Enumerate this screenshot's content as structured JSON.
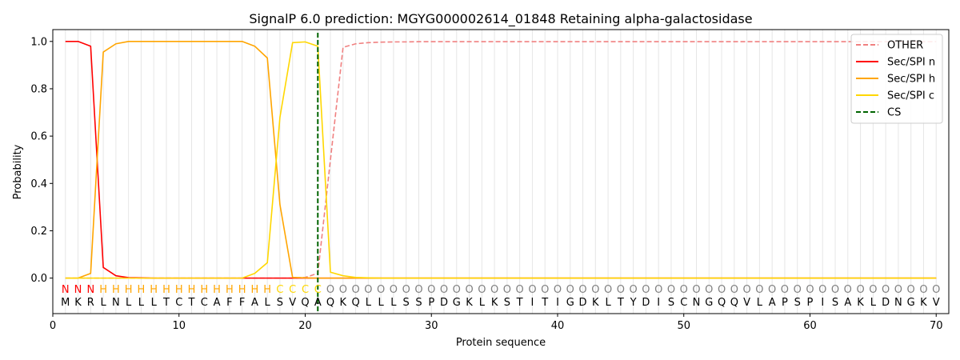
{
  "chart_data": {
    "type": "line",
    "title": "SignalP 6.0 prediction: MGYG000002614_01848 Retaining alpha-galactosidase",
    "xlabel": "Protein sequence",
    "ylabel": "Probability",
    "xlim": [
      0,
      71
    ],
    "ylim": [
      -0.15,
      1.05
    ],
    "xticks": [
      0,
      10,
      20,
      30,
      40,
      50,
      60,
      70
    ],
    "yticks": [
      "0.0",
      "0.2",
      "0.4",
      "0.6",
      "0.8",
      "1.0"
    ],
    "grid": "vertical lines at each residue",
    "legend_position": "top-right",
    "sequence": [
      "M",
      "K",
      "R",
      "L",
      "N",
      "L",
      "L",
      "L",
      "T",
      "C",
      "T",
      "C",
      "A",
      "F",
      "F",
      "A",
      "L",
      "S",
      "V",
      "Q",
      "A",
      "Q",
      "K",
      "Q",
      "L",
      "L",
      "L",
      "S",
      "S",
      "P",
      "D",
      "G",
      "K",
      "L",
      "K",
      "S",
      "T",
      "I",
      "T",
      "I",
      "G",
      "D",
      "K",
      "L",
      "T",
      "Y",
      "D",
      "I",
      "S",
      "C",
      "N",
      "G",
      "Q",
      "Q",
      "V",
      "L",
      "A",
      "P",
      "S",
      "P",
      "I",
      "S",
      "A",
      "K",
      "L",
      "D",
      "N",
      "G",
      "K",
      "V"
    ],
    "labels": [
      "N",
      "N",
      "N",
      "H",
      "H",
      "H",
      "H",
      "H",
      "H",
      "H",
      "H",
      "H",
      "H",
      "H",
      "H",
      "H",
      "H",
      "C",
      "C",
      "C",
      "C",
      "O",
      "O",
      "O",
      "O",
      "O",
      "O",
      "O",
      "O",
      "O",
      "O",
      "O",
      "O",
      "O",
      "O",
      "O",
      "O",
      "O",
      "O",
      "O",
      "O",
      "O",
      "O",
      "O",
      "O",
      "O",
      "O",
      "O",
      "O",
      "O",
      "O",
      "O",
      "O",
      "O",
      "O",
      "O",
      "O",
      "O",
      "O",
      "O",
      "O",
      "O",
      "O",
      "O",
      "O",
      "O",
      "O",
      "O",
      "O",
      "O"
    ],
    "label_colors": {
      "N": "#ff0000",
      "H": "#ffa500",
      "C": "#ffd700",
      "O": "#808080"
    },
    "series": [
      {
        "name": "OTHER",
        "color": "#f08080",
        "dash": "dashed",
        "values": [
          0,
          0,
          0,
          0,
          0,
          0,
          0,
          0,
          0,
          0,
          0,
          0,
          0,
          0,
          0,
          0,
          0,
          0,
          0,
          0.003,
          0.02,
          0.5,
          0.975,
          0.99,
          0.995,
          0.997,
          0.998,
          0.998,
          0.999,
          0.999,
          0.999,
          0.999,
          0.999,
          0.999,
          0.999,
          0.999,
          0.999,
          0.999,
          0.999,
          0.999,
          0.999,
          0.999,
          0.999,
          0.999,
          0.999,
          0.999,
          0.999,
          0.999,
          0.999,
          0.999,
          0.999,
          0.999,
          0.999,
          0.999,
          0.999,
          0.999,
          0.999,
          0.999,
          0.999,
          0.999,
          0.999,
          0.999,
          0.999,
          0.999,
          0.999,
          0.999,
          0.999,
          0.999,
          0.999,
          0.999
        ]
      },
      {
        "name": "Sec/SPI n",
        "color": "#ff0000",
        "dash": "solid",
        "values": [
          1.0,
          1.0,
          0.98,
          0.045,
          0.01,
          0.002,
          0.001,
          0,
          0,
          0,
          0,
          0,
          0,
          0,
          0,
          0,
          0,
          0,
          0,
          0,
          0,
          0,
          0,
          0,
          0,
          0,
          0,
          0,
          0,
          0,
          0,
          0,
          0,
          0,
          0,
          0,
          0,
          0,
          0,
          0,
          0,
          0,
          0,
          0,
          0,
          0,
          0,
          0,
          0,
          0,
          0,
          0,
          0,
          0,
          0,
          0,
          0,
          0,
          0,
          0,
          0,
          0,
          0,
          0,
          0,
          0,
          0,
          0,
          0,
          0
        ]
      },
      {
        "name": "Sec/SPI h",
        "color": "#ffa500",
        "dash": "solid",
        "values": [
          0,
          0,
          0.02,
          0.955,
          0.99,
          1.0,
          1.0,
          1.0,
          1.0,
          1.0,
          1.0,
          1.0,
          1.0,
          1.0,
          1.0,
          0.98,
          0.93,
          0.31,
          0.003,
          0.001,
          0,
          0,
          0,
          0,
          0,
          0,
          0,
          0,
          0,
          0,
          0,
          0,
          0,
          0,
          0,
          0,
          0,
          0,
          0,
          0,
          0,
          0,
          0,
          0,
          0,
          0,
          0,
          0,
          0,
          0,
          0,
          0,
          0,
          0,
          0,
          0,
          0,
          0,
          0,
          0,
          0,
          0,
          0,
          0,
          0,
          0,
          0,
          0,
          0,
          0
        ]
      },
      {
        "name": "Sec/SPI c",
        "color": "#ffd700",
        "dash": "solid",
        "values": [
          0,
          0,
          0,
          0,
          0,
          0,
          0,
          0,
          0,
          0,
          0,
          0,
          0,
          0,
          0,
          0.02,
          0.065,
          0.68,
          0.995,
          0.998,
          0.98,
          0.025,
          0.01,
          0.003,
          0.001,
          0,
          0,
          0,
          0,
          0,
          0,
          0,
          0,
          0,
          0,
          0,
          0,
          0,
          0,
          0,
          0,
          0,
          0,
          0,
          0,
          0,
          0,
          0,
          0,
          0,
          0,
          0,
          0,
          0,
          0,
          0,
          0,
          0,
          0,
          0,
          0,
          0,
          0,
          0,
          0,
          0,
          0,
          0,
          0,
          0
        ]
      }
    ],
    "cs": {
      "name": "CS",
      "x": 21,
      "color": "#006400",
      "dash": "dashed"
    }
  }
}
